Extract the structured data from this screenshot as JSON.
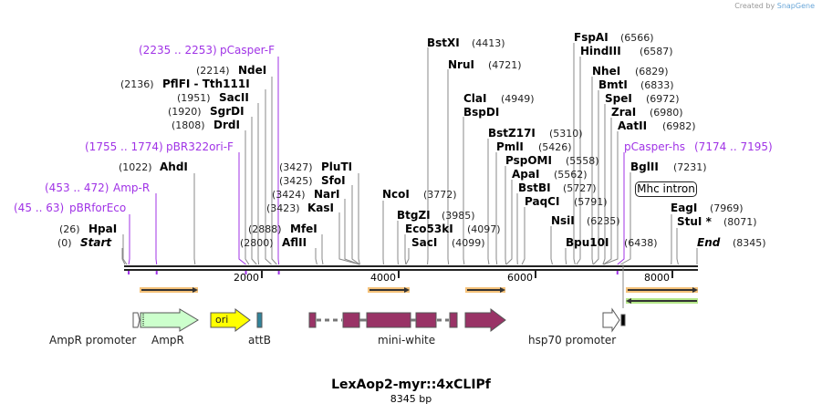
{
  "credit": {
    "prefix": "Created by",
    "brand": "SnapGene"
  },
  "title": "LexAop2-myr::4xCLIPf",
  "length": "8345 bp",
  "sites": [
    {
      "name": "Start",
      "pos": "(0)",
      "bp": 0
    },
    {
      "name": "HpaI",
      "pos": "(26)",
      "bp": 26
    },
    {
      "name": "AhdI",
      "pos": "(1022)",
      "bp": 1022
    },
    {
      "name": "DrdI",
      "pos": "(1808)",
      "bp": 1808
    },
    {
      "name": "SgrDI",
      "pos": "(1920)",
      "bp": 1920
    },
    {
      "name": "SacII",
      "pos": "(1951)",
      "bp": 1951
    },
    {
      "name": "PflFI  - Tth111I",
      "pos": "(2136)",
      "bp": 2136
    },
    {
      "name": "NdeI",
      "pos": "(2214)",
      "bp": 2214
    },
    {
      "name": "AflII",
      "pos": "(2800)",
      "bp": 2800
    },
    {
      "name": "MfeI",
      "pos": "(2888)",
      "bp": 2888
    },
    {
      "name": "KasI",
      "pos": "(3423)",
      "bp": 3423
    },
    {
      "name": "NarI",
      "pos": "(3424)",
      "bp": 3424
    },
    {
      "name": "SfoI",
      "pos": "(3425)",
      "bp": 3425
    },
    {
      "name": "PluTI",
      "pos": "(3427)",
      "bp": 3427
    },
    {
      "name": "NcoI",
      "pos": "(3772)",
      "bp": 3772
    },
    {
      "name": "BtgZI",
      "pos": "(3985)",
      "bp": 3985
    },
    {
      "name": "Eco53kI",
      "pos": "(4097)",
      "bp": 4097
    },
    {
      "name": "SacI",
      "pos": "(4099)",
      "bp": 4099
    },
    {
      "name": "BstXI",
      "pos": "(4413)",
      "bp": 4413
    },
    {
      "name": "NruI",
      "pos": "(4721)",
      "bp": 4721
    },
    {
      "name": "ClaI",
      "pos": "(4949)",
      "bp": 4949,
      "alias": "BspDI"
    },
    {
      "name": "BstZ17I",
      "pos": "(5310)",
      "bp": 5310
    },
    {
      "name": "PmlI",
      "pos": "(5426)",
      "bp": 5426
    },
    {
      "name": "PspOMI",
      "pos": "(5558)",
      "bp": 5558
    },
    {
      "name": "ApaI",
      "pos": "(5562)",
      "bp": 5562
    },
    {
      "name": "BstBI",
      "pos": "(5727)",
      "bp": 5727
    },
    {
      "name": "PaqCI",
      "pos": "(5791)",
      "bp": 5791
    },
    {
      "name": "NsiI",
      "pos": "(6235)",
      "bp": 6235
    },
    {
      "name": "Bpu10I",
      "pos": "(6438)",
      "bp": 6438
    },
    {
      "name": "FspAI",
      "pos": "(6566)",
      "bp": 6566
    },
    {
      "name": "HindIII",
      "pos": "(6587)",
      "bp": 6587
    },
    {
      "name": "NheI",
      "pos": "(6829)",
      "bp": 6829
    },
    {
      "name": "BmtI",
      "pos": "(6833)",
      "bp": 6833
    },
    {
      "name": "SpeI",
      "pos": "(6972)",
      "bp": 6972
    },
    {
      "name": "ZraI",
      "pos": "(6980)",
      "bp": 6980
    },
    {
      "name": "AatII",
      "pos": "(6982)",
      "bp": 6982
    },
    {
      "name": "BglII",
      "pos": "(7231)",
      "bp": 7231
    },
    {
      "name": "EagI",
      "pos": "(7969)",
      "bp": 7969
    },
    {
      "name": "StuI *",
      "pos": "(8071)",
      "bp": 8071
    },
    {
      "name": "End",
      "pos": "(8345)",
      "bp": 8345
    }
  ],
  "primers": [
    {
      "name": "pBRforEco",
      "range": "(45 .. 63)",
      "bp": 54
    },
    {
      "name": "Amp-R",
      "range": "(453 .. 472)",
      "bp": 462
    },
    {
      "name": "pBR322ori-F",
      "range": "(1755 .. 1774)",
      "bp": 1764
    },
    {
      "name": "pCasper-F",
      "range": "(2235 .. 2253)",
      "bp": 2244
    },
    {
      "name": "pCasper-hs",
      "range": "(7174 .. 7195)",
      "bp": 7184
    }
  ],
  "ticks": [
    "2000",
    "4000",
    "6000",
    "8000"
  ],
  "features": {
    "ampr_promoter": "AmpR promoter",
    "ampr": "AmpR",
    "ori": "ori",
    "attb": "attB",
    "mini_white": "mini-white",
    "hsp70": "hsp70 promoter",
    "mhc_intron": "Mhc intron"
  },
  "colors": {
    "primer": "#a033e6",
    "ampr": "#ccffcc",
    "ori": "#ffff00",
    "attb": "#31849b",
    "mini_white": "#993366",
    "orf": "#f5c27a",
    "orf_rev": "#b6e88a"
  }
}
